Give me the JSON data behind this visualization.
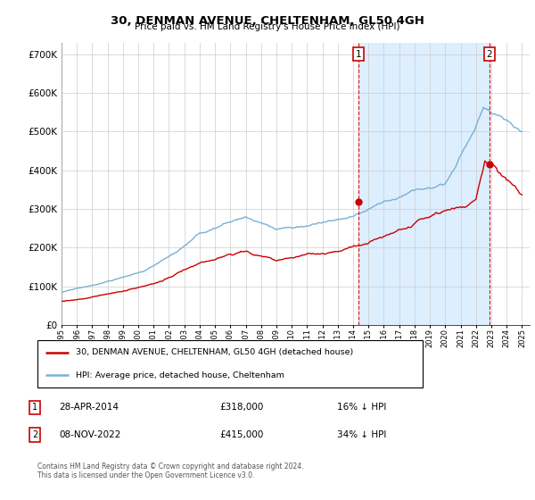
{
  "title": "30, DENMAN AVENUE, CHELTENHAM, GL50 4GH",
  "subtitle": "Price paid vs. HM Land Registry's House Price Index (HPI)",
  "legend_line1": "30, DENMAN AVENUE, CHELTENHAM, GL50 4GH (detached house)",
  "legend_line2": "HPI: Average price, detached house, Cheltenham",
  "footnote1": "Contains HM Land Registry data © Crown copyright and database right 2024.",
  "footnote2": "This data is licensed under the Open Government Licence v3.0.",
  "sale1_date": "28-APR-2014",
  "sale1_price": "£318,000",
  "sale1_hpi": "16% ↓ HPI",
  "sale1_year": 2014.33,
  "sale1_value": 318000,
  "sale2_date": "08-NOV-2022",
  "sale2_price": "£415,000",
  "sale2_hpi": "34% ↓ HPI",
  "sale2_year": 2022.87,
  "sale2_value": 415000,
  "red_color": "#cc0000",
  "blue_color": "#7ab0d4",
  "shade_color": "#ddeeff",
  "ylim": [
    0,
    730000
  ],
  "xlim_start": 1995.0,
  "xlim_end": 2025.5,
  "yticks": [
    0,
    100000,
    200000,
    300000,
    400000,
    500000,
    600000,
    700000
  ],
  "xticks": [
    1995,
    1996,
    1997,
    1998,
    1999,
    2000,
    2001,
    2002,
    2003,
    2004,
    2005,
    2006,
    2007,
    2008,
    2009,
    2010,
    2011,
    2012,
    2013,
    2014,
    2015,
    2016,
    2017,
    2018,
    2019,
    2020,
    2021,
    2022,
    2023,
    2024,
    2025
  ]
}
